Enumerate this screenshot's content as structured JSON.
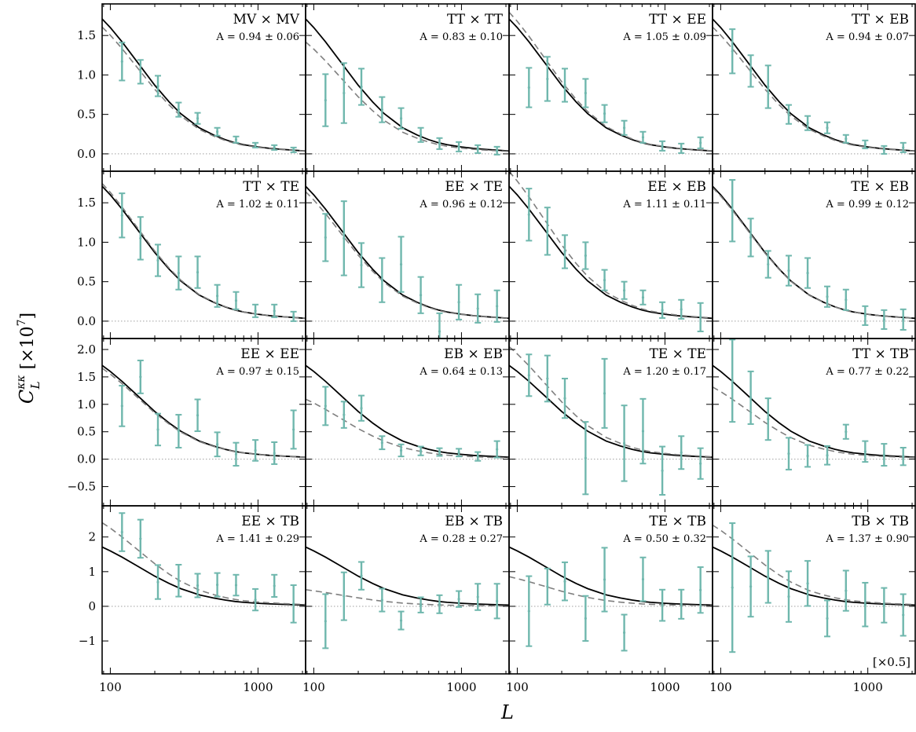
{
  "figure": {
    "ylabel": "C_L^{κκ} [×10^7]",
    "ylabel_main": "C",
    "ylabel_sup": "κκ",
    "ylabel_sub": "L",
    "ylabel_rest": " [×10",
    "ylabel_exp": "7",
    "ylabel_close": "]",
    "xlabel": "L"
  },
  "colors": {
    "data_points": "#6fb7ad",
    "theory_line": "#000000",
    "fit_line": "#7f7f7f",
    "zero_line": "#a0a0a0"
  },
  "chart_data": {
    "type": "scatter",
    "xscale": "log",
    "xlim": [
      88,
      2100
    ],
    "x_ticks": [
      100,
      1000
    ],
    "x_tick_labels": [
      "100",
      "1000"
    ],
    "grid": false,
    "rows": [
      {
        "ylim": [
          -0.22,
          1.9
        ],
        "y_ticks": [
          0.0,
          0.5,
          1.0,
          1.5
        ],
        "y_tick_labels": [
          "0.0",
          "0.5",
          "1.0",
          "1.5"
        ]
      },
      {
        "ylim": [
          -0.22,
          1.9
        ],
        "y_ticks": [
          0.0,
          0.5,
          1.0,
          1.5
        ],
        "y_tick_labels": [
          "0.0",
          "0.5",
          "1.0",
          "1.5"
        ]
      },
      {
        "ylim": [
          -0.85,
          2.2
        ],
        "y_ticks": [
          -0.5,
          0.0,
          0.5,
          1.0,
          1.5,
          2.0
        ],
        "y_tick_labels": [
          "−0.5",
          "0.0",
          "0.5",
          "1.0",
          "1.5",
          "2.0"
        ]
      },
      {
        "ylim": [
          -1.95,
          2.9
        ],
        "y_ticks": [
          -1,
          0,
          1,
          2
        ],
        "y_tick_labels": [
          "−1",
          "0",
          "1",
          "2"
        ]
      }
    ],
    "theory_curve": {
      "x": [
        88,
        100,
        120,
        150,
        200,
        250,
        300,
        400,
        500,
        600,
        700,
        800,
        1000,
        1200,
        1500,
        1800,
        2100
      ],
      "y": [
        1.71,
        1.6,
        1.42,
        1.18,
        0.87,
        0.66,
        0.51,
        0.33,
        0.24,
        0.18,
        0.14,
        0.115,
        0.088,
        0.07,
        0.055,
        0.045,
        0.036
      ]
    },
    "bin_centers": [
      120,
      160,
      210,
      290,
      390,
      530,
      710,
      960,
      1290,
      1740
    ],
    "panels": [
      {
        "title": "MV × MV",
        "amplitude": "A = 0.94 ± 0.06",
        "A": 0.94,
        "row": 0,
        "col": 0,
        "y": [
          1.17,
          1.04,
          0.86,
          0.56,
          0.45,
          0.28,
          0.18,
          0.11,
          0.08,
          0.05
        ],
        "yerr": [
          0.24,
          0.15,
          0.13,
          0.09,
          0.07,
          0.05,
          0.04,
          0.03,
          0.03,
          0.03
        ]
      },
      {
        "title": "TT × TT",
        "amplitude": "A = 0.83 ± 0.10",
        "A": 0.83,
        "row": 0,
        "col": 1,
        "y": [
          0.68,
          0.77,
          0.85,
          0.56,
          0.45,
          0.24,
          0.13,
          0.09,
          0.06,
          0.04
        ],
        "yerr": [
          0.33,
          0.38,
          0.23,
          0.16,
          0.13,
          0.09,
          0.07,
          0.06,
          0.05,
          0.05
        ]
      },
      {
        "title": "TT × EE",
        "amplitude": "A = 1.05 ± 0.09",
        "A": 1.05,
        "row": 0,
        "col": 2,
        "y": [
          0.84,
          0.95,
          0.87,
          0.77,
          0.51,
          0.33,
          0.21,
          0.1,
          0.07,
          0.14
        ],
        "yerr": [
          0.25,
          0.28,
          0.21,
          0.18,
          0.11,
          0.09,
          0.07,
          0.06,
          0.06,
          0.07
        ]
      },
      {
        "title": "TT × EB",
        "amplitude": "A = 0.94 ± 0.07",
        "A": 0.94,
        "row": 0,
        "col": 3,
        "y": [
          1.3,
          1.05,
          0.85,
          0.5,
          0.39,
          0.33,
          0.19,
          0.12,
          0.05,
          0.08
        ],
        "yerr": [
          0.28,
          0.2,
          0.27,
          0.12,
          0.09,
          0.07,
          0.05,
          0.05,
          0.05,
          0.06
        ]
      },
      {
        "title": "TT × TE",
        "amplitude": "A = 1.02 ± 0.11",
        "A": 1.02,
        "row": 1,
        "col": 0,
        "y": [
          1.34,
          1.05,
          0.77,
          0.61,
          0.62,
          0.32,
          0.26,
          0.13,
          0.13,
          0.06
        ],
        "yerr": [
          0.28,
          0.27,
          0.2,
          0.21,
          0.2,
          0.14,
          0.11,
          0.08,
          0.08,
          0.06
        ]
      },
      {
        "title": "EE × TE",
        "amplitude": "A = 0.96 ± 0.12",
        "A": 0.96,
        "row": 1,
        "col": 1,
        "y": [
          1.06,
          1.05,
          0.71,
          0.52,
          0.72,
          0.33,
          -0.13,
          0.24,
          0.16,
          0.19
        ],
        "yerr": [
          0.3,
          0.47,
          0.28,
          0.28,
          0.35,
          0.23,
          0.23,
          0.22,
          0.18,
          0.2
        ]
      },
      {
        "title": "EE × EB",
        "amplitude": "A = 1.11 ± 0.11",
        "A": 1.11,
        "row": 1,
        "col": 2,
        "y": [
          1.35,
          1.14,
          0.88,
          0.83,
          0.52,
          0.39,
          0.3,
          0.14,
          0.15,
          0.05
        ],
        "yerr": [
          0.33,
          0.3,
          0.21,
          0.17,
          0.13,
          0.11,
          0.09,
          0.1,
          0.12,
          0.18
        ]
      },
      {
        "title": "TE × EB",
        "amplitude": "A = 0.99 ± 0.12",
        "A": 0.99,
        "row": 1,
        "col": 3,
        "y": [
          1.4,
          1.06,
          0.72,
          0.64,
          0.61,
          0.31,
          0.27,
          0.07,
          0.02,
          0.02
        ],
        "yerr": [
          0.39,
          0.24,
          0.17,
          0.19,
          0.19,
          0.13,
          0.13,
          0.12,
          0.12,
          0.13
        ]
      },
      {
        "title": "EE × EE",
        "amplitude": "A = 0.97 ± 0.15",
        "A": 0.97,
        "row": 2,
        "col": 0,
        "y": [
          0.97,
          1.5,
          0.54,
          0.51,
          0.8,
          0.27,
          0.09,
          0.16,
          0.11,
          0.54
        ],
        "yerr": [
          0.37,
          0.3,
          0.29,
          0.3,
          0.29,
          0.22,
          0.21,
          0.19,
          0.2,
          0.35
        ]
      },
      {
        "title": "EB × EB",
        "amplitude": "A = 0.64 ± 0.13",
        "A": 0.64,
        "row": 2,
        "col": 1,
        "y": [
          0.97,
          0.81,
          0.93,
          0.3,
          0.16,
          0.15,
          0.13,
          0.12,
          0.05,
          0.18
        ],
        "yerr": [
          0.35,
          0.24,
          0.23,
          0.12,
          0.11,
          0.08,
          0.07,
          0.07,
          0.08,
          0.15
        ]
      },
      {
        "title": "TE × TE",
        "amplitude": "A = 1.20 ± 0.17",
        "A": 1.2,
        "row": 2,
        "col": 2,
        "y": [
          1.53,
          1.47,
          1.11,
          0.02,
          1.2,
          0.29,
          0.51,
          -0.21,
          0.12,
          -0.08
        ],
        "yerr": [
          0.38,
          0.42,
          0.36,
          0.66,
          0.63,
          0.69,
          0.59,
          0.44,
          0.3,
          0.28
        ]
      },
      {
        "title": "TT × TB",
        "amplitude": "A = 0.77 ± 0.22",
        "A": 0.77,
        "row": 2,
        "col": 3,
        "y": [
          1.43,
          1.12,
          0.73,
          0.1,
          0.06,
          0.07,
          0.5,
          0.14,
          0.08,
          0.05
        ],
        "yerr": [
          0.75,
          0.48,
          0.38,
          0.29,
          0.2,
          0.17,
          0.13,
          0.19,
          0.2,
          0.16
        ]
      },
      {
        "title": "EE × TB",
        "amplitude": "A = 1.41 ± 0.29",
        "A": 1.41,
        "row": 3,
        "col": 0,
        "y": [
          2.14,
          1.95,
          0.7,
          0.74,
          0.6,
          0.62,
          0.61,
          0.19,
          0.59,
          0.07
        ],
        "yerr": [
          0.55,
          0.55,
          0.49,
          0.46,
          0.34,
          0.34,
          0.3,
          0.31,
          0.32,
          0.54
        ]
      },
      {
        "title": "EB × TB",
        "amplitude": "A = 0.28 ± 0.27",
        "A": 0.28,
        "row": 3,
        "col": 1,
        "y": [
          -0.43,
          0.29,
          0.88,
          0.18,
          -0.41,
          0.04,
          0.06,
          0.21,
          0.27,
          0.15
        ],
        "yerr": [
          0.78,
          0.69,
          0.4,
          0.33,
          0.26,
          0.22,
          0.26,
          0.23,
          0.38,
          0.5
        ]
      },
      {
        "title": "TE × TB",
        "amplitude": "A = 0.50 ± 0.32",
        "A": 0.5,
        "row": 3,
        "col": 2,
        "y": [
          -0.14,
          0.57,
          0.72,
          -0.35,
          0.77,
          -0.76,
          0.78,
          0.03,
          0.06,
          0.47
        ],
        "yerr": [
          1.01,
          0.52,
          0.55,
          0.65,
          0.92,
          0.52,
          0.63,
          0.45,
          0.42,
          0.66
        ]
      },
      {
        "title": "TB × TB",
        "amplitude": "A = 1.37 ± 0.90",
        "A": 1.37,
        "row": 3,
        "col": 3,
        "y": [
          0.54,
          0.57,
          0.85,
          0.28,
          0.66,
          -0.35,
          0.45,
          0.05,
          0.03,
          -0.25
        ],
        "yerr": [
          1.86,
          0.87,
          0.75,
          0.73,
          0.65,
          0.52,
          0.58,
          0.63,
          0.5,
          0.6
        ]
      }
    ],
    "annotation": "[×0.5]"
  }
}
